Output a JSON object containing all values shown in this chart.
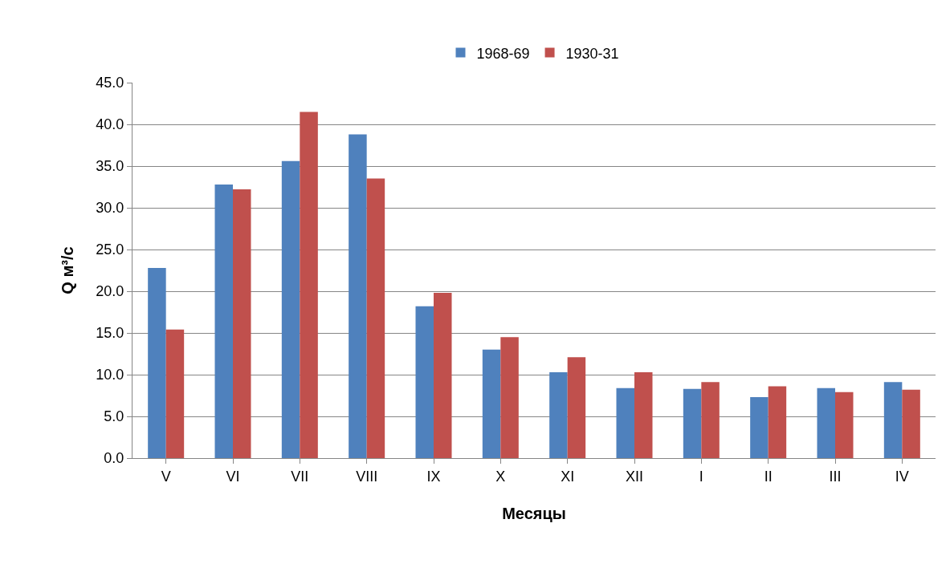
{
  "chart_data": {
    "type": "bar",
    "xlabel": "Месяцы",
    "ylabel": "Q м³/с",
    "categories": [
      "V",
      "VI",
      "VII",
      "VIII",
      "IX",
      "X",
      "XI",
      "XII",
      "I",
      "II",
      "III",
      "IV"
    ],
    "series": [
      {
        "name": "1968-69",
        "color": "#4f81bd",
        "values": [
          22.8,
          32.8,
          35.6,
          38.8,
          18.2,
          13.0,
          10.3,
          8.4,
          8.3,
          7.3,
          8.4,
          9.1
        ]
      },
      {
        "name": "1930-31",
        "color": "#c0504d",
        "values": [
          15.4,
          32.2,
          41.5,
          33.5,
          19.8,
          14.5,
          12.1,
          10.3,
          9.1,
          8.6,
          7.9,
          8.2
        ]
      }
    ],
    "ylim": [
      0,
      45
    ],
    "yticks": [
      {
        "value": 0,
        "label": "0.0"
      },
      {
        "value": 5,
        "label": "5.0"
      },
      {
        "value": 10,
        "label": "10.0"
      },
      {
        "value": 15,
        "label": "15.0"
      },
      {
        "value": 20,
        "label": "20.0"
      },
      {
        "value": 25,
        "label": "25.0"
      },
      {
        "value": 30,
        "label": "30.0"
      },
      {
        "value": 35,
        "label": "35.0"
      },
      {
        "value": 40,
        "label": "40.0"
      },
      {
        "value": 45,
        "label": "45.0"
      }
    ],
    "grid": "y",
    "legend": "top"
  }
}
